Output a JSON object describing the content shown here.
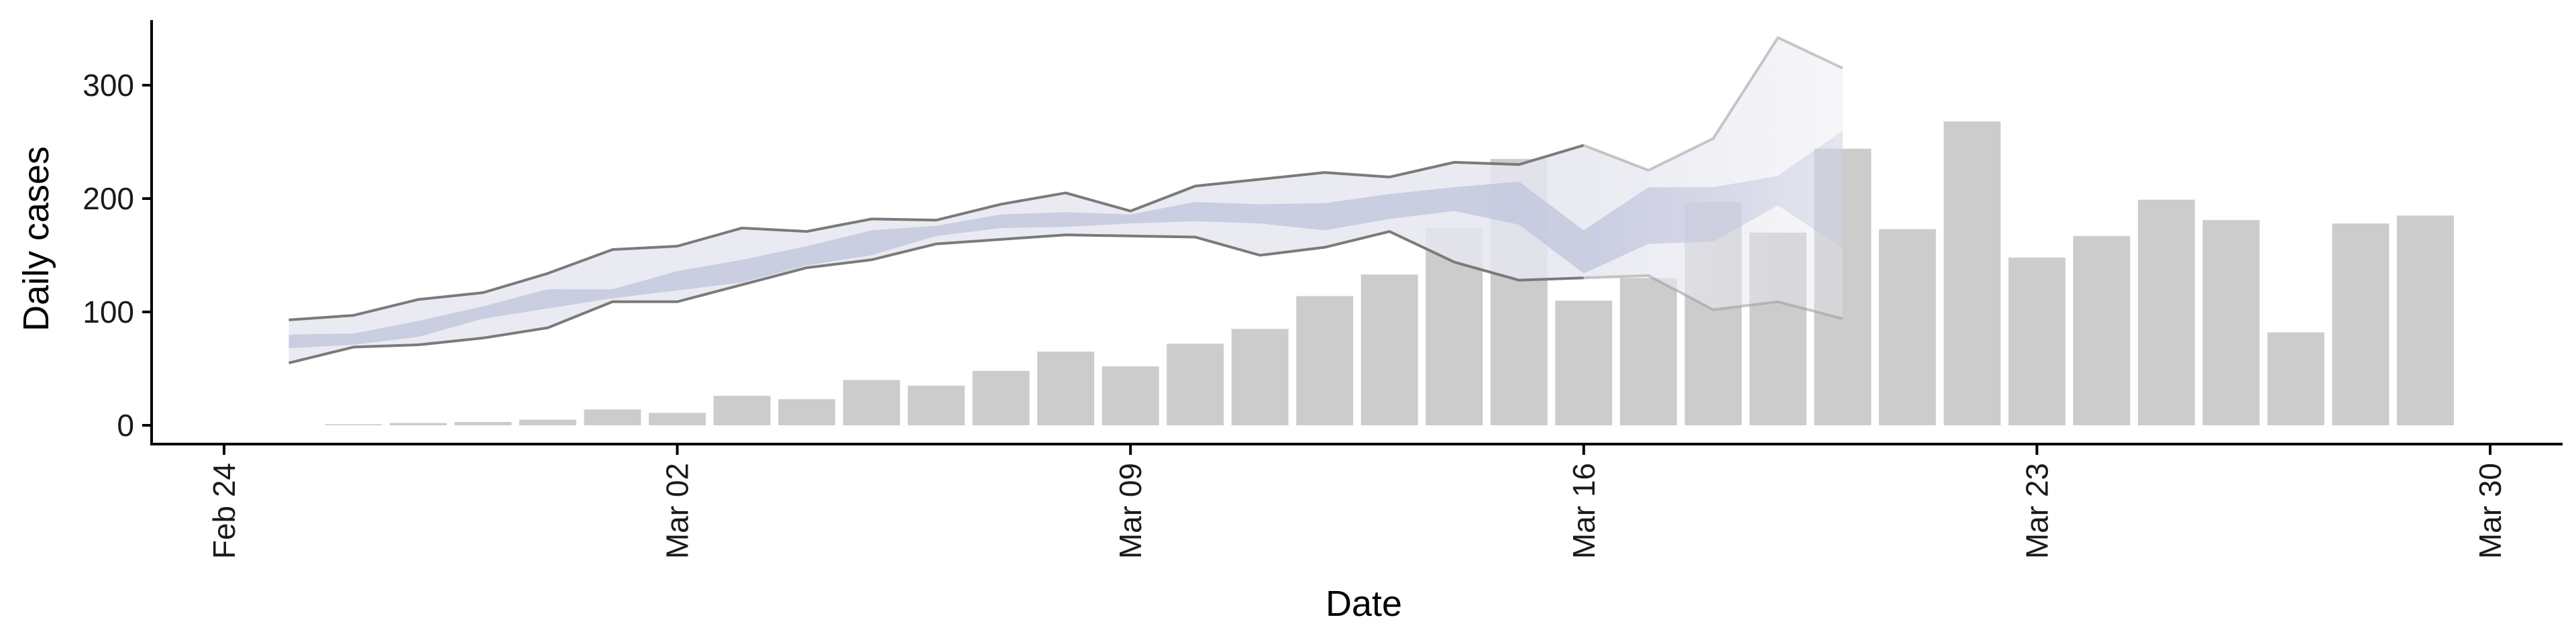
{
  "chart_data": {
    "type": "bar",
    "xlabel": "Date",
    "ylabel": "Daily cases",
    "xlim": [
      "2020-02-24",
      "2020-03-30"
    ],
    "ylim": [
      0,
      350
    ],
    "x_ticks": [
      "Feb 24",
      "Mar 02",
      "Mar 09",
      "Mar 16",
      "Mar 23",
      "Mar 30"
    ],
    "y_ticks": [
      0,
      100,
      200,
      300
    ],
    "grid": false,
    "legend": "none",
    "colors": {
      "bars": "#cccccc",
      "band_outer": "#e6e7ef",
      "band_inner": "#c7cadf",
      "band_line": "#888888"
    },
    "bars": {
      "x": [
        "2020-02-26",
        "2020-02-27",
        "2020-02-28",
        "2020-02-29",
        "2020-03-01",
        "2020-03-02",
        "2020-03-03",
        "2020-03-04",
        "2020-03-05",
        "2020-03-06",
        "2020-03-07",
        "2020-03-08",
        "2020-03-09",
        "2020-03-10",
        "2020-03-11",
        "2020-03-12",
        "2020-03-13",
        "2020-03-14",
        "2020-03-15",
        "2020-03-16",
        "2020-03-17",
        "2020-03-18",
        "2020-03-19",
        "2020-03-20",
        "2020-03-21",
        "2020-03-22",
        "2020-03-23",
        "2020-03-24",
        "2020-03-25",
        "2020-03-26",
        "2020-03-27",
        "2020-03-28",
        "2020-03-29"
      ],
      "values": [
        1,
        2,
        3,
        5,
        14,
        11,
        26,
        23,
        40,
        35,
        48,
        65,
        52,
        72,
        85,
        114,
        133,
        174,
        235,
        110,
        130,
        197,
        170,
        244,
        173,
        268,
        148,
        167,
        199,
        181,
        82,
        178,
        185
      ]
    },
    "band": {
      "x": [
        "2020-02-25",
        "2020-02-26",
        "2020-02-27",
        "2020-02-28",
        "2020-02-29",
        "2020-03-01",
        "2020-03-02",
        "2020-03-03",
        "2020-03-04",
        "2020-03-05",
        "2020-03-06",
        "2020-03-07",
        "2020-03-08",
        "2020-03-09",
        "2020-03-10",
        "2020-03-11",
        "2020-03-12",
        "2020-03-13",
        "2020-03-14",
        "2020-03-15",
        "2020-03-16",
        "2020-03-17",
        "2020-03-18",
        "2020-03-19",
        "2020-03-20"
      ],
      "upper": [
        93,
        97,
        111,
        117,
        134,
        155,
        158,
        174,
        171,
        182,
        181,
        195,
        205,
        189,
        211,
        217,
        223,
        219,
        232,
        230,
        247,
        225,
        253,
        342,
        315
      ],
      "lower": [
        55,
        69,
        71,
        77,
        86,
        109,
        109,
        124,
        139,
        146,
        160,
        164,
        168,
        167,
        166,
        150,
        157,
        171,
        144,
        128,
        130,
        132,
        102,
        109,
        94
      ],
      "inner_upper": [
        80,
        81,
        92,
        105,
        120,
        120,
        136,
        146,
        158,
        172,
        176,
        186,
        188,
        186,
        197,
        195,
        196,
        204,
        210,
        215,
        172,
        210,
        210,
        220,
        260
      ],
      "inner_lower": [
        68,
        71,
        78,
        94,
        103,
        112,
        119,
        126,
        141,
        150,
        167,
        174,
        175,
        178,
        180,
        178,
        172,
        182,
        189,
        177,
        134,
        160,
        162,
        194,
        156
      ],
      "fade_from": "2020-03-16"
    }
  }
}
